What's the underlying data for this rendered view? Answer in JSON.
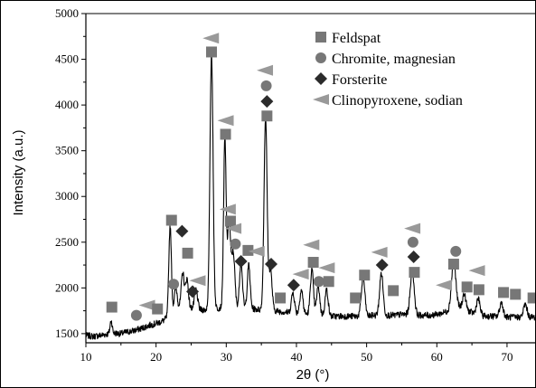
{
  "chart_data": {
    "type": "line",
    "title": "",
    "xlabel": "2θ (°)",
    "ylabel": "Intensity (a.u.)",
    "xlim": [
      10,
      74
    ],
    "ylim": [
      1400,
      5000
    ],
    "x_ticks": [
      10,
      20,
      30,
      40,
      50,
      60,
      70
    ],
    "y_ticks": [
      1500,
      2000,
      2500,
      3000,
      3500,
      4000,
      4500,
      5000
    ],
    "grid": false,
    "legend_position": "top-right",
    "line_color": "#000000",
    "trace": {
      "name": "",
      "baseline": [
        [
          10,
          1480
        ],
        [
          11,
          1470
        ],
        [
          12,
          1480
        ],
        [
          13,
          1495
        ],
        [
          14,
          1505
        ],
        [
          15,
          1500
        ],
        [
          16,
          1520
        ],
        [
          17,
          1535
        ],
        [
          18,
          1560
        ],
        [
          19,
          1590
        ],
        [
          20,
          1610
        ],
        [
          21,
          1640
        ],
        [
          22,
          1700
        ],
        [
          23,
          1790
        ],
        [
          24,
          1800
        ],
        [
          25,
          1780
        ],
        [
          26,
          1760
        ],
        [
          27,
          1760
        ],
        [
          28,
          1770
        ],
        [
          29,
          1780
        ],
        [
          30,
          1800
        ],
        [
          31,
          1800
        ],
        [
          32,
          1790
        ],
        [
          33,
          1780
        ],
        [
          34,
          1770
        ],
        [
          35,
          1760
        ],
        [
          36,
          1760
        ],
        [
          37,
          1750
        ],
        [
          38,
          1740
        ],
        [
          39,
          1730
        ],
        [
          40,
          1720
        ],
        [
          41,
          1720
        ],
        [
          42,
          1710
        ],
        [
          43,
          1700
        ],
        [
          44,
          1700
        ],
        [
          45,
          1690
        ],
        [
          46,
          1690
        ],
        [
          47,
          1690
        ],
        [
          48,
          1690
        ],
        [
          49,
          1690
        ],
        [
          50,
          1690
        ],
        [
          51,
          1700
        ],
        [
          52,
          1700
        ],
        [
          53,
          1700
        ],
        [
          54,
          1700
        ],
        [
          55,
          1710
        ],
        [
          56,
          1710
        ],
        [
          57,
          1700
        ],
        [
          58,
          1700
        ],
        [
          59,
          1700
        ],
        [
          60,
          1710
        ],
        [
          61,
          1730
        ],
        [
          62,
          1760
        ],
        [
          63,
          1790
        ],
        [
          64,
          1760
        ],
        [
          65,
          1730
        ],
        [
          66,
          1700
        ],
        [
          67,
          1690
        ],
        [
          68,
          1690
        ],
        [
          69,
          1680
        ],
        [
          70,
          1680
        ],
        [
          71,
          1680
        ],
        [
          72,
          1680
        ],
        [
          73,
          1680
        ],
        [
          74,
          1680
        ]
      ],
      "peaks": [
        {
          "x": 13.6,
          "y": 1640,
          "w": 0.15
        },
        {
          "x": 22.0,
          "y": 2680,
          "w": 0.18
        },
        {
          "x": 22.8,
          "y": 2000,
          "w": 0.2
        },
        {
          "x": 23.8,
          "y": 2170,
          "w": 0.2
        },
        {
          "x": 24.4,
          "y": 2100,
          "w": 0.2
        },
        {
          "x": 25.7,
          "y": 1980,
          "w": 0.22
        },
        {
          "x": 27.9,
          "y": 4560,
          "w": 0.22
        },
        {
          "x": 29.8,
          "y": 3620,
          "w": 0.18
        },
        {
          "x": 30.4,
          "y": 2720,
          "w": 0.22
        },
        {
          "x": 31.0,
          "y": 2380,
          "w": 0.22
        },
        {
          "x": 32.1,
          "y": 2300,
          "w": 0.2
        },
        {
          "x": 33.2,
          "y": 2250,
          "w": 0.2
        },
        {
          "x": 35.6,
          "y": 3860,
          "w": 0.22
        },
        {
          "x": 36.3,
          "y": 2200,
          "w": 0.22
        },
        {
          "x": 39.5,
          "y": 1950,
          "w": 0.22
        },
        {
          "x": 40.7,
          "y": 1980,
          "w": 0.22
        },
        {
          "x": 42.2,
          "y": 2200,
          "w": 0.22
        },
        {
          "x": 43.1,
          "y": 2020,
          "w": 0.22
        },
        {
          "x": 44.3,
          "y": 1980,
          "w": 0.22
        },
        {
          "x": 49.5,
          "y": 2110,
          "w": 0.25
        },
        {
          "x": 52.1,
          "y": 2160,
          "w": 0.25
        },
        {
          "x": 56.5,
          "y": 2180,
          "w": 0.28
        },
        {
          "x": 62.4,
          "y": 2290,
          "w": 0.3
        },
        {
          "x": 63.9,
          "y": 1930,
          "w": 0.25
        },
        {
          "x": 65.9,
          "y": 1880,
          "w": 0.25
        },
        {
          "x": 69.2,
          "y": 1840,
          "w": 0.25
        },
        {
          "x": 72.6,
          "y": 1820,
          "w": 0.25
        }
      ]
    },
    "phases": [
      {
        "name": "Feldspat",
        "marker": "square",
        "color": "#777777"
      },
      {
        "name": "Chromite, magnesian",
        "marker": "circle",
        "color": "#777777"
      },
      {
        "name": "Forsterite",
        "marker": "diamond",
        "color": "#2b2b2b"
      },
      {
        "name": "Clinopyroxene, sodian",
        "marker": "triangle-left",
        "color": "#999999"
      }
    ],
    "peak_markers": [
      {
        "phase": "Feldspat",
        "x": 13.7,
        "y": 1790
      },
      {
        "phase": "Chromite, magnesian",
        "x": 17.2,
        "y": 1700
      },
      {
        "phase": "Clinopyroxene, sodian",
        "x": 18.7,
        "y": 1810
      },
      {
        "phase": "Feldspat",
        "x": 20.2,
        "y": 1770
      },
      {
        "phase": "Feldspat",
        "x": 22.2,
        "y": 2740
      },
      {
        "phase": "Chromite, magnesian",
        "x": 22.5,
        "y": 2040
      },
      {
        "phase": "Forsterite",
        "x": 23.7,
        "y": 2620
      },
      {
        "phase": "Feldspat",
        "x": 24.5,
        "y": 2380
      },
      {
        "phase": "Forsterite",
        "x": 25.2,
        "y": 1960
      },
      {
        "phase": "Clinopyroxene, sodian",
        "x": 25.9,
        "y": 2080
      },
      {
        "phase": "Feldspat",
        "x": 27.9,
        "y": 4580
      },
      {
        "phase": "Clinopyroxene, sodian",
        "x": 27.8,
        "y": 4730
      },
      {
        "phase": "Feldspat",
        "x": 29.9,
        "y": 3680
      },
      {
        "phase": "Clinopyroxene, sodian",
        "x": 29.9,
        "y": 3830
      },
      {
        "phase": "Clinopyroxene, sodian",
        "x": 30.2,
        "y": 2860
      },
      {
        "phase": "Feldspat",
        "x": 30.6,
        "y": 2730
      },
      {
        "phase": "Clinopyroxene, sodian",
        "x": 31.0,
        "y": 2650
      },
      {
        "phase": "Chromite, magnesian",
        "x": 31.3,
        "y": 2480
      },
      {
        "phase": "Forsterite",
        "x": 32.1,
        "y": 2290
      },
      {
        "phase": "Feldspat",
        "x": 33.1,
        "y": 2410
      },
      {
        "phase": "Clinopyroxene, sodian",
        "x": 34.3,
        "y": 2400
      },
      {
        "phase": "Clinopyroxene, sodian",
        "x": 35.5,
        "y": 4380
      },
      {
        "phase": "Chromite, magnesian",
        "x": 35.7,
        "y": 4210
      },
      {
        "phase": "Forsterite",
        "x": 35.8,
        "y": 4040
      },
      {
        "phase": "Feldspat",
        "x": 35.8,
        "y": 3880
      },
      {
        "phase": "Forsterite",
        "x": 36.4,
        "y": 2260
      },
      {
        "phase": "Feldspat",
        "x": 37.7,
        "y": 1890
      },
      {
        "phase": "Forsterite",
        "x": 39.6,
        "y": 2030
      },
      {
        "phase": "Clinopyroxene, sodian",
        "x": 40.6,
        "y": 2150
      },
      {
        "phase": "Clinopyroxene, sodian",
        "x": 42.1,
        "y": 2470
      },
      {
        "phase": "Feldspat",
        "x": 42.4,
        "y": 2280
      },
      {
        "phase": "Chromite, magnesian",
        "x": 43.2,
        "y": 2070
      },
      {
        "phase": "Clinopyroxene, sodian",
        "x": 44.3,
        "y": 2220
      },
      {
        "phase": "Feldspat",
        "x": 44.6,
        "y": 2070
      },
      {
        "phase": "Feldspat",
        "x": 48.4,
        "y": 1890
      },
      {
        "phase": "Feldspat",
        "x": 49.7,
        "y": 2140
      },
      {
        "phase": "Clinopyroxene, sodian",
        "x": 51.8,
        "y": 2390
      },
      {
        "phase": "Forsterite",
        "x": 52.2,
        "y": 2250
      },
      {
        "phase": "Feldspat",
        "x": 53.8,
        "y": 1970
      },
      {
        "phase": "Clinopyroxene, sodian",
        "x": 56.5,
        "y": 2650
      },
      {
        "phase": "Chromite, magnesian",
        "x": 56.6,
        "y": 2500
      },
      {
        "phase": "Forsterite",
        "x": 56.7,
        "y": 2340
      },
      {
        "phase": "Feldspat",
        "x": 56.8,
        "y": 2170
      },
      {
        "phase": "Clinopyroxene, sodian",
        "x": 61.0,
        "y": 2030
      },
      {
        "phase": "Chromite, magnesian",
        "x": 62.7,
        "y": 2400
      },
      {
        "phase": "Feldspat",
        "x": 62.4,
        "y": 2260
      },
      {
        "phase": "Feldspat",
        "x": 64.3,
        "y": 2010
      },
      {
        "phase": "Clinopyroxene, sodian",
        "x": 65.7,
        "y": 2190
      },
      {
        "phase": "Feldspat",
        "x": 66.0,
        "y": 1980
      },
      {
        "phase": "Feldspat",
        "x": 69.5,
        "y": 1950
      },
      {
        "phase": "Feldspat",
        "x": 71.2,
        "y": 1930
      },
      {
        "phase": "Feldspat",
        "x": 73.7,
        "y": 1890
      }
    ]
  }
}
